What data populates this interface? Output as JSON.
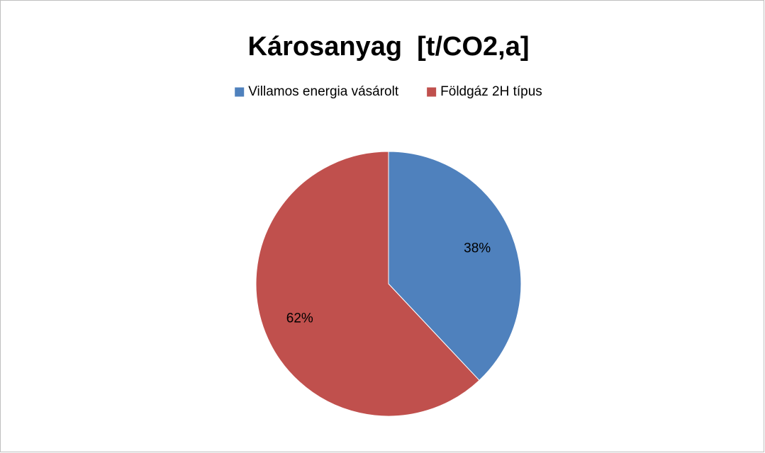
{
  "chart_data": {
    "type": "pie",
    "title": "Károsanyag  [t/CO2,a]",
    "categories": [
      "Villamos energia vásárolt",
      "Földgáz 2H típus"
    ],
    "values": [
      38,
      62
    ],
    "value_labels": [
      "38%",
      "62%"
    ],
    "colors": [
      "#4f81bd",
      "#c0504d"
    ],
    "legend": "top"
  }
}
